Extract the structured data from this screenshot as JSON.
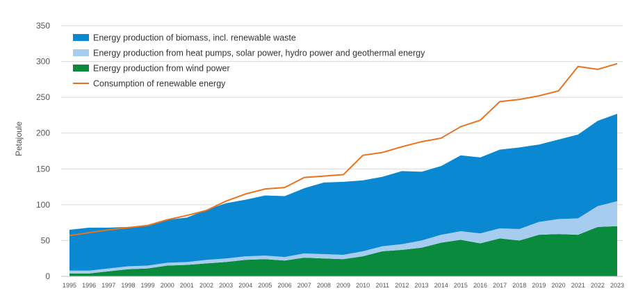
{
  "chart_data": {
    "type": "area",
    "ylabel": "Petajoule",
    "ylim": [
      0,
      350
    ],
    "yticks": [
      0,
      50,
      100,
      150,
      200,
      250,
      300,
      350
    ],
    "grid": true,
    "legend_position": "top-left",
    "x": [
      "1995",
      "1996",
      "1997",
      "1998",
      "1999",
      "2000",
      "2001",
      "2002",
      "2003",
      "2004",
      "2005",
      "2006",
      "2007",
      "2008",
      "2009",
      "2010",
      "2011",
      "2012",
      "2013",
      "2014",
      "2015",
      "2016",
      "2017",
      "2018",
      "2019",
      "2020",
      "2021",
      "2022",
      "2023"
    ],
    "series": [
      {
        "name": "Energy production of biomass, incl. renewable waste",
        "kind": "stacked-area",
        "color": "#0a88d2",
        "values": [
          57,
          60,
          57,
          55,
          56,
          60,
          62,
          70,
          77,
          79,
          84,
          85,
          91,
          100,
          102,
          99,
          97,
          102,
          96,
          96,
          106,
          106,
          110,
          114,
          108,
          111,
          117,
          119,
          122
        ]
      },
      {
        "name": "Energy production from heat pumps, solar power, hydro power and geothermal energy",
        "kind": "stacked-area",
        "color": "#a6cdf0",
        "values": [
          4,
          4,
          4,
          4,
          4,
          4,
          4,
          5,
          5,
          5,
          5,
          5,
          6,
          6,
          6,
          7,
          7,
          8,
          10,
          11,
          12,
          14,
          14,
          16,
          18,
          21,
          23,
          29,
          35
        ]
      },
      {
        "name": "Energy production from wind power",
        "kind": "stacked-area",
        "color": "#0a8a3c",
        "values": [
          4,
          4,
          7,
          10,
          11,
          15,
          16,
          18,
          20,
          23,
          24,
          22,
          26,
          25,
          24,
          28,
          35,
          37,
          40,
          47,
          51,
          46,
          53,
          50,
          58,
          59,
          58,
          69,
          70
        ]
      },
      {
        "name": "Consumption of renewable energy",
        "kind": "line",
        "color": "#e8731c",
        "values": [
          57,
          61,
          65,
          68,
          71,
          79,
          85,
          92,
          105,
          115,
          122,
          124,
          138,
          140,
          142,
          169,
          173,
          181,
          188,
          193,
          209,
          218,
          244,
          247,
          252,
          259,
          293,
          289,
          297
        ]
      }
    ]
  }
}
